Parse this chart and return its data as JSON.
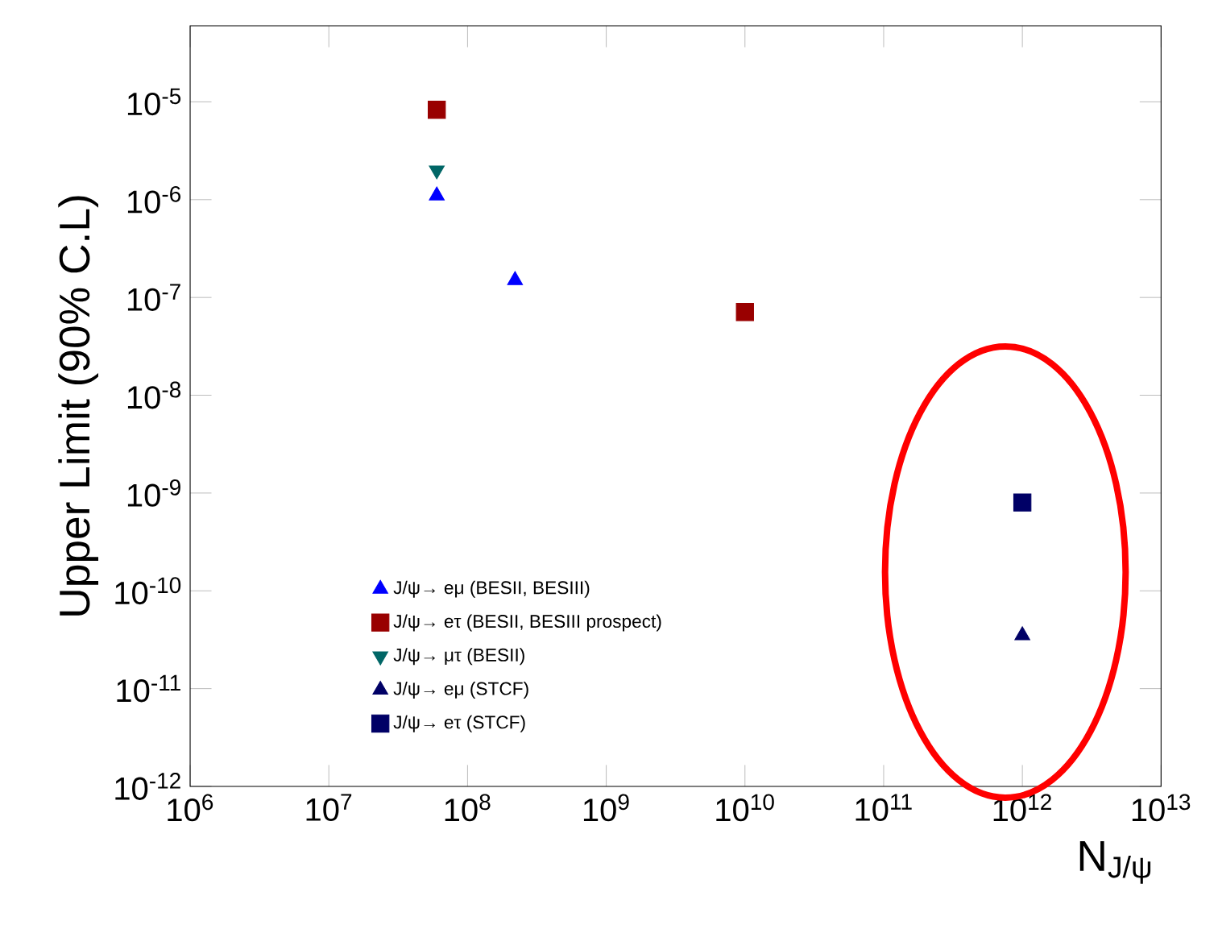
{
  "chart_data": {
    "type": "scatter",
    "ylabel": "Upper Limit (90% C.L)",
    "xlabel": "N$_{J/ψ}$",
    "log": "xy",
    "grid": false,
    "legend": "bottom left",
    "xlim": [
      1000000,
      10000000000000
    ],
    "ylim": [
      1e-12,
      6e-05
    ],
    "xticks": [
      {
        "value": 1000000,
        "label": "10$^{6}$"
      },
      {
        "value": 10000000,
        "label": "10$^{7}$"
      },
      {
        "value": 100000000,
        "label": "10$^{8}$"
      },
      {
        "value": 1000000000,
        "label": "10$^{9}$"
      },
      {
        "value": 10000000000,
        "label": "10$^{10}$"
      },
      {
        "value": 100000000000,
        "label": "10$^{11}$"
      },
      {
        "value": 1000000000000,
        "label": "10$^{12}$"
      },
      {
        "value": 10000000000000,
        "label": "10$^{13}$"
      }
    ],
    "yticks": [
      {
        "value": 1e-12,
        "label": "10$^{-12}$"
      },
      {
        "value": 1e-11,
        "label": "10$^{-11}$"
      },
      {
        "value": 1e-10,
        "label": "10$^{-10}$"
      },
      {
        "value": 1e-09,
        "label": "10$^{-9}$"
      },
      {
        "value": 1e-08,
        "label": "10$^{-8}$"
      },
      {
        "value": 1e-07,
        "label": "10$^{-7}$"
      },
      {
        "value": 1e-06,
        "label": "10$^{-6}$"
      },
      {
        "value": 1e-05,
        "label": "10$^{-5}$"
      }
    ],
    "series": [
      {
        "name": "J/ψ→ eμ (BESII, BESIII)",
        "color": "#0000ff",
        "marker": "triangle",
        "x": [
          60000000,
          220000000
        ],
        "values": [
          1.1e-06,
          1.5e-07
        ]
      },
      {
        "name": "J/ψ→ eτ (BESII, BESIII prospect)",
        "color": "#990000",
        "marker": "square",
        "x": [
          60000000,
          10000000000
        ],
        "values": [
          8.3e-06,
          7.1e-08
        ]
      },
      {
        "name": "J/ψ→ μτ (BESII)",
        "color": "#006666",
        "marker": "triangle down",
        "x": [
          60000000
        ],
        "values": [
          2e-06
        ]
      },
      {
        "name": "J/ψ→ eμ (STCF)",
        "color": "#000066",
        "marker": "triangle",
        "x": [
          1000000000000
        ],
        "values": [
          3.5e-11
        ]
      },
      {
        "name": "J/ψ→ eτ (STCF)",
        "color": "#000066",
        "marker": "square",
        "x": [
          1000000000000
        ],
        "values": [
          8e-10
        ]
      }
    ]
  }
}
